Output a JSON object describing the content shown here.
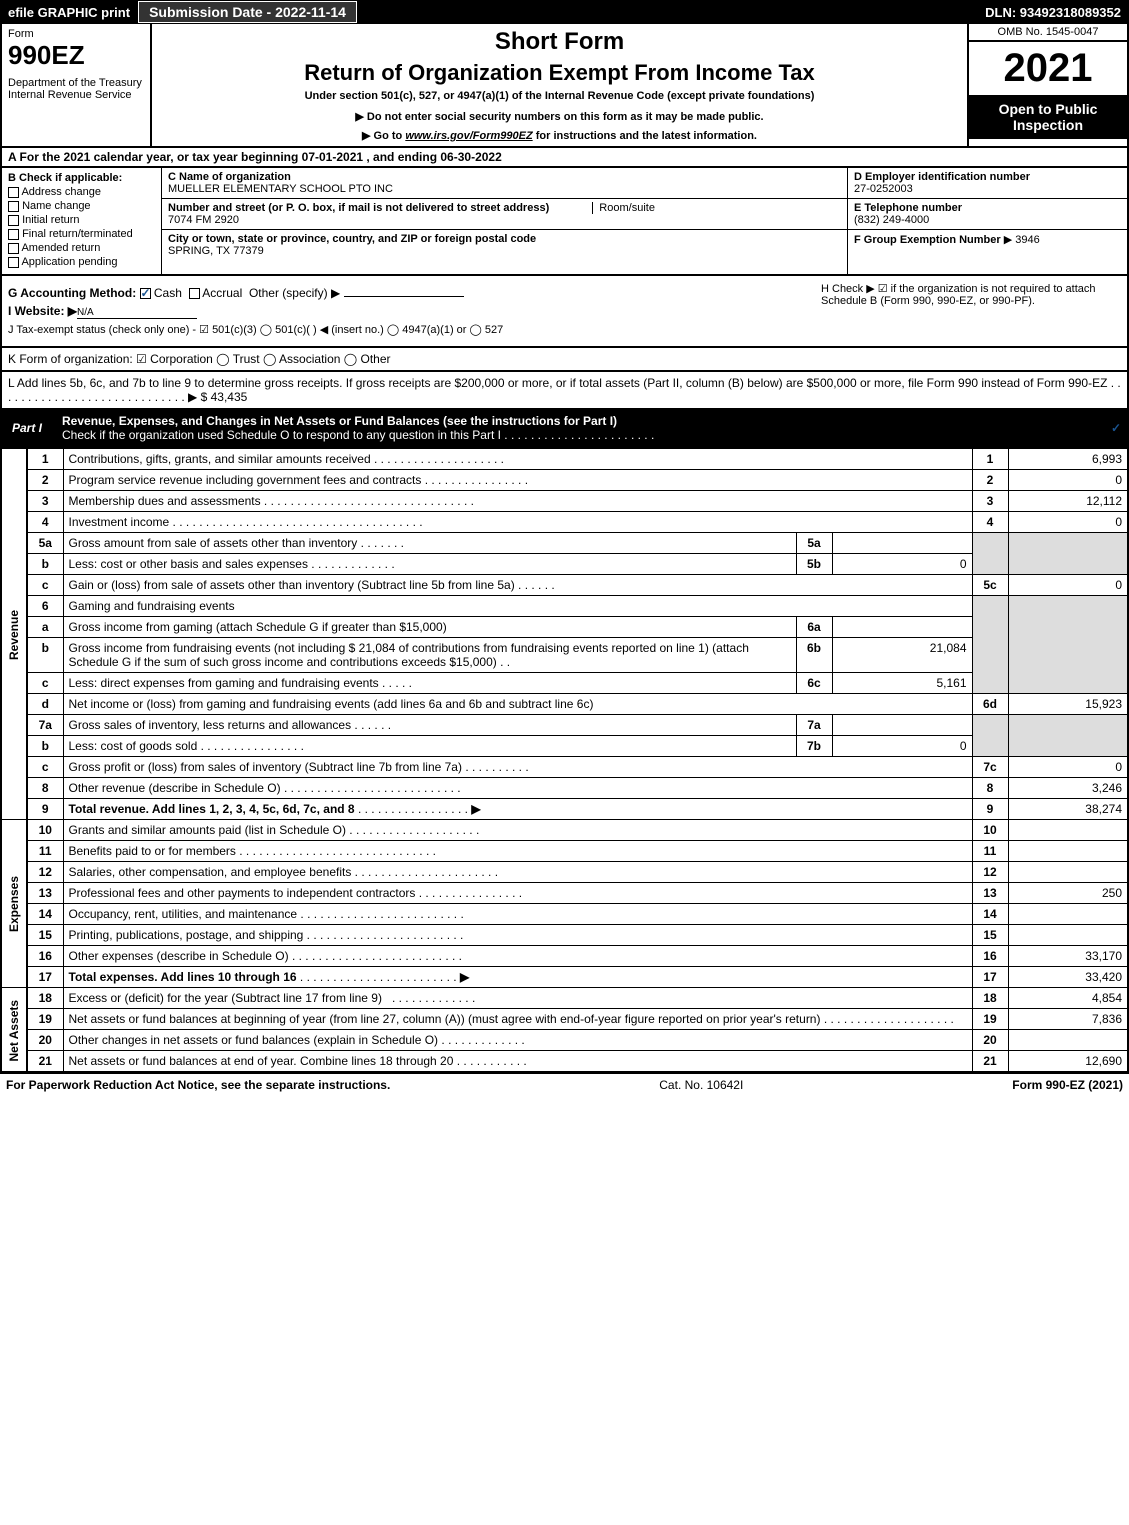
{
  "top": {
    "efile": "efile GRAPHIC print",
    "submission": "Submission Date - 2022-11-14",
    "dln": "DLN: 93492318089352"
  },
  "header": {
    "form_label": "Form",
    "form_num": "990EZ",
    "dept": "Department of the Treasury\nInternal Revenue Service",
    "short_form": "Short Form",
    "return_title": "Return of Organization Exempt From Income Tax",
    "under_section": "Under section 501(c), 527, or 4947(a)(1) of the Internal Revenue Code (except private foundations)",
    "notice": "▶ Do not enter social security numbers on this form as it may be made public.",
    "goto_prefix": "▶ Go to ",
    "goto_link": "www.irs.gov/Form990EZ",
    "goto_suffix": " for instructions and the latest information.",
    "omb": "OMB No. 1545-0047",
    "year": "2021",
    "open_public": "Open to Public Inspection"
  },
  "row_a": "A  For the 2021 calendar year, or tax year beginning 07-01-2021 , and ending 06-30-2022",
  "col_b": {
    "header": "B  Check if applicable:",
    "opts": [
      "Address change",
      "Name change",
      "Initial return",
      "Final return/terminated",
      "Amended return",
      "Application pending"
    ]
  },
  "col_c": {
    "name_lbl": "C Name of organization",
    "name": "MUELLER ELEMENTARY SCHOOL PTO INC",
    "addr_lbl": "Number and street (or P. O. box, if mail is not delivered to street address)",
    "addr": "7074 FM 2920",
    "room_lbl": "Room/suite",
    "city_lbl": "City or town, state or province, country, and ZIP or foreign postal code",
    "city": "SPRING, TX  77379"
  },
  "col_de": {
    "d_lbl": "D Employer identification number",
    "d_val": "27-0252003",
    "e_lbl": "E Telephone number",
    "e_val": "(832) 249-4000",
    "f_lbl": "F Group Exemption Number",
    "f_val": "▶ 3946"
  },
  "g_line": "G Accounting Method:",
  "g_cash": "Cash",
  "g_accrual": "Accrual",
  "g_other": "Other (specify) ▶",
  "h_check": "H  Check ▶ ☑ if the organization is not required to attach Schedule B (Form 990, 990-EZ, or 990-PF).",
  "i_line": "I Website: ▶",
  "i_val": "N/A",
  "j_line": "J Tax-exempt status (check only one) - ☑ 501(c)(3) ◯ 501(c)(  ) ◀ (insert no.) ◯ 4947(a)(1) or ◯ 527",
  "k_line": "K Form of organization:  ☑ Corporation  ◯ Trust  ◯ Association  ◯ Other",
  "l_line": "L Add lines 5b, 6c, and 7b to line 9 to determine gross receipts. If gross receipts are $200,000 or more, or if total assets (Part II, column (B) below) are $500,000 or more, file Form 990 instead of Form 990-EZ . . . . . . . . . . . . . . . . . . . . . . . . . . . . . ▶ $ 43,435",
  "part1": {
    "label": "Part I",
    "title": "Revenue, Expenses, and Changes in Net Assets or Fund Balances (see the instructions for Part I)",
    "sub": "Check if the organization used Schedule O to respond to any question in this Part I . . . . . . . . . . . . . . . . . . . . . . ."
  },
  "revenue_label": "Revenue",
  "expenses_label": "Expenses",
  "netassets_label": "Net Assets",
  "lines": {
    "l1": {
      "n": "1",
      "d": "Contributions, gifts, grants, and similar amounts received",
      "rn": "1",
      "v": "6,993"
    },
    "l2": {
      "n": "2",
      "d": "Program service revenue including government fees and contracts",
      "rn": "2",
      "v": "0"
    },
    "l3": {
      "n": "3",
      "d": "Membership dues and assessments",
      "rn": "3",
      "v": "12,112"
    },
    "l4": {
      "n": "4",
      "d": "Investment income",
      "rn": "4",
      "v": "0"
    },
    "l5a": {
      "n": "5a",
      "d": "Gross amount from sale of assets other than inventory",
      "mn": "5a",
      "mv": ""
    },
    "l5b": {
      "n": "b",
      "d": "Less: cost or other basis and sales expenses",
      "mn": "5b",
      "mv": "0"
    },
    "l5c": {
      "n": "c",
      "d": "Gain or (loss) from sale of assets other than inventory (Subtract line 5b from line 5a)",
      "rn": "5c",
      "v": "0"
    },
    "l6": {
      "n": "6",
      "d": "Gaming and fundraising events"
    },
    "l6a": {
      "n": "a",
      "d": "Gross income from gaming (attach Schedule G if greater than $15,000)",
      "mn": "6a",
      "mv": ""
    },
    "l6b": {
      "n": "b",
      "d": "Gross income from fundraising events (not including $  21,084    of contributions from fundraising events reported on line 1) (attach Schedule G if the sum of such gross income and contributions exceeds $15,000)",
      "mn": "6b",
      "mv": "21,084"
    },
    "l6c": {
      "n": "c",
      "d": "Less: direct expenses from gaming and fundraising events",
      "mn": "6c",
      "mv": "5,161"
    },
    "l6d": {
      "n": "d",
      "d": "Net income or (loss) from gaming and fundraising events (add lines 6a and 6b and subtract line 6c)",
      "rn": "6d",
      "v": "15,923"
    },
    "l7a": {
      "n": "7a",
      "d": "Gross sales of inventory, less returns and allowances",
      "mn": "7a",
      "mv": ""
    },
    "l7b": {
      "n": "b",
      "d": "Less: cost of goods sold",
      "mn": "7b",
      "mv": "0"
    },
    "l7c": {
      "n": "c",
      "d": "Gross profit or (loss) from sales of inventory (Subtract line 7b from line 7a)",
      "rn": "7c",
      "v": "0"
    },
    "l8": {
      "n": "8",
      "d": "Other revenue (describe in Schedule O)",
      "rn": "8",
      "v": "3,246"
    },
    "l9": {
      "n": "9",
      "d": "Total revenue. Add lines 1, 2, 3, 4, 5c, 6d, 7c, and 8",
      "rn": "9",
      "v": "38,274"
    },
    "l10": {
      "n": "10",
      "d": "Grants and similar amounts paid (list in Schedule O)",
      "rn": "10",
      "v": ""
    },
    "l11": {
      "n": "11",
      "d": "Benefits paid to or for members",
      "rn": "11",
      "v": ""
    },
    "l12": {
      "n": "12",
      "d": "Salaries, other compensation, and employee benefits",
      "rn": "12",
      "v": ""
    },
    "l13": {
      "n": "13",
      "d": "Professional fees and other payments to independent contractors",
      "rn": "13",
      "v": "250"
    },
    "l14": {
      "n": "14",
      "d": "Occupancy, rent, utilities, and maintenance",
      "rn": "14",
      "v": ""
    },
    "l15": {
      "n": "15",
      "d": "Printing, publications, postage, and shipping",
      "rn": "15",
      "v": ""
    },
    "l16": {
      "n": "16",
      "d": "Other expenses (describe in Schedule O)",
      "rn": "16",
      "v": "33,170"
    },
    "l17": {
      "n": "17",
      "d": "Total expenses. Add lines 10 through 16",
      "rn": "17",
      "v": "33,420"
    },
    "l18": {
      "n": "18",
      "d": "Excess or (deficit) for the year (Subtract line 17 from line 9)",
      "rn": "18",
      "v": "4,854"
    },
    "l19": {
      "n": "19",
      "d": "Net assets or fund balances at beginning of year (from line 27, column (A)) (must agree with end-of-year figure reported on prior year's return)",
      "rn": "19",
      "v": "7,836"
    },
    "l20": {
      "n": "20",
      "d": "Other changes in net assets or fund balances (explain in Schedule O)",
      "rn": "20",
      "v": ""
    },
    "l21": {
      "n": "21",
      "d": "Net assets or fund balances at end of year. Combine lines 18 through 20",
      "rn": "21",
      "v": "12,690"
    }
  },
  "footer": {
    "left": "For Paperwork Reduction Act Notice, see the separate instructions.",
    "mid": "Cat. No. 10642I",
    "right": "Form 990-EZ (2021)"
  }
}
